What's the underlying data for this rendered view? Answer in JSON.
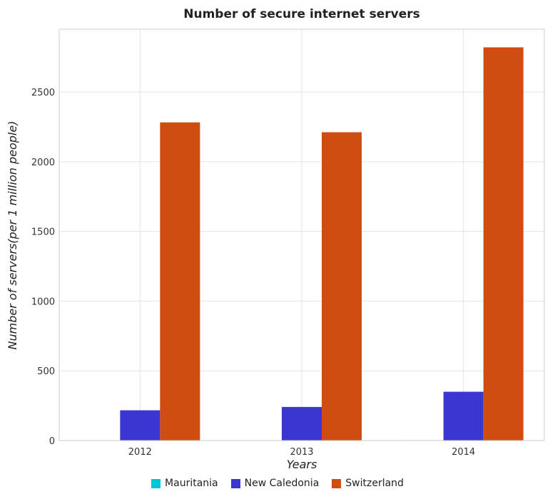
{
  "chart_data": {
    "type": "bar",
    "title": "Number of secure internet servers",
    "xlabel": "Years",
    "ylabel": "Number of servers(per 1 million people)",
    "categories": [
      "2012",
      "2013",
      "2014"
    ],
    "series": [
      {
        "name": "Mauritania",
        "color": "#00c5d2",
        "values": [
          0.8,
          1.0,
          2.8
        ]
      },
      {
        "name": "New Caledonia",
        "color": "#3b36cf",
        "values": [
          217,
          241,
          350
        ]
      },
      {
        "name": "Switzerland",
        "color": "#cf4d10",
        "values": [
          2282,
          2211,
          2820
        ]
      }
    ],
    "ylim": [
      0,
      2950
    ],
    "yticks": [
      0,
      500,
      1000,
      1500,
      2000,
      2500
    ],
    "grid": true,
    "legend_position": "bottom"
  }
}
